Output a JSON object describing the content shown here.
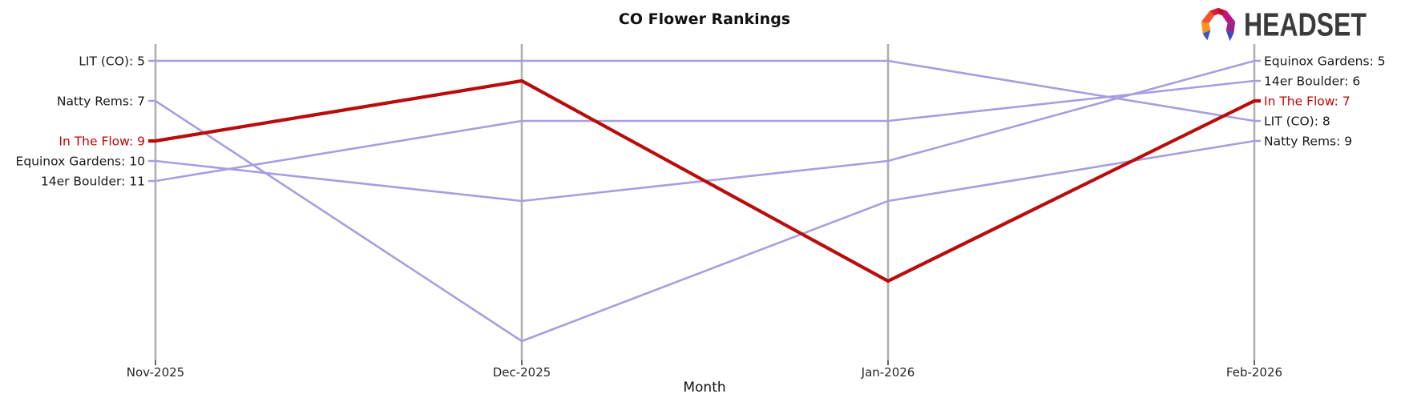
{
  "logo": {
    "text": "HEADSET",
    "icon": "headset-faceted-arc"
  },
  "chart_data": {
    "type": "line",
    "variant": "bump-rank-chart",
    "title": "CO Flower Rankings",
    "xlabel": "Month",
    "ylabel": "",
    "categories": [
      "Nov-2025",
      "Dec-2025",
      "Jan-2026",
      "Feb-2026"
    ],
    "series": [
      {
        "name": "LIT (CO)",
        "values": [
          5,
          5,
          5,
          8
        ],
        "start_label": "LIT (CO): 5",
        "end_label": "LIT (CO): 8",
        "highlight": false
      },
      {
        "name": "Natty Rems",
        "values": [
          7,
          19,
          12,
          9
        ],
        "start_label": "Natty Rems: 7",
        "end_label": "Natty Rems: 9",
        "highlight": false
      },
      {
        "name": "In The Flow",
        "values": [
          9,
          6,
          16,
          7
        ],
        "start_label": "In The Flow: 9",
        "end_label": "In The Flow: 7",
        "highlight": true
      },
      {
        "name": "Equinox Gardens",
        "values": [
          10,
          12,
          10,
          5
        ],
        "start_label": "Equinox Gardens: 10",
        "end_label": "Equinox Gardens: 5",
        "highlight": false
      },
      {
        "name": "14er Boulder",
        "values": [
          11,
          8,
          8,
          6
        ],
        "start_label": "14er Boulder: 11",
        "end_label": "14er Boulder: 6",
        "highlight": false
      }
    ],
    "colors": {
      "line": "#a89de0",
      "highlight_line": "#b90c0c",
      "highlight_text": "#c00606",
      "label_text": "#1a1a1a",
      "tick_text": "#262626",
      "axis": "#b0b0b0"
    },
    "layout_hints": {
      "orientation": "ranks on vertical axis, lower rank number plotted higher",
      "labels": "series labeled at both line endpoints, no legend box",
      "grid": "vertical month axis lines only"
    }
  }
}
